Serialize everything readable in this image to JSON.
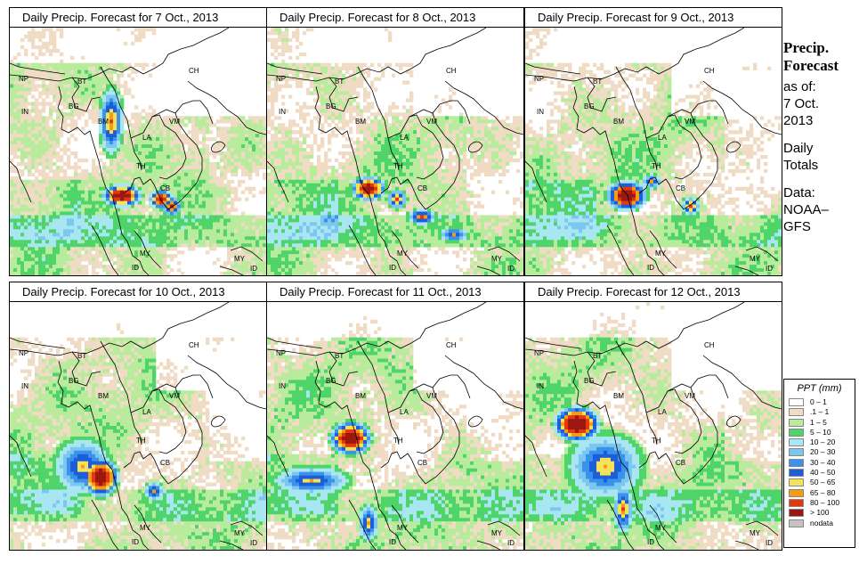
{
  "panels": [
    {
      "title": "Daily Precip. Forecast for  7 Oct., 2013",
      "variant": 0
    },
    {
      "title": "Daily Precip. Forecast for  8 Oct., 2013",
      "variant": 1
    },
    {
      "title": "Daily Precip. Forecast for  9 Oct., 2013",
      "variant": 2
    },
    {
      "title": "Daily Precip. Forecast for  10 Oct., 2013",
      "variant": 3
    },
    {
      "title": "Daily Precip. Forecast for  11 Oct., 2013",
      "variant": 4
    },
    {
      "title": "Daily Precip. Forecast for  12 Oct., 2013",
      "variant": 5
    }
  ],
  "map_labels": [
    "NP",
    "BT",
    "IN",
    "BG",
    "BM",
    "CH",
    "VM",
    "LA",
    "TH",
    "CB",
    "MY",
    "ID"
  ],
  "sidebar": {
    "heading1": "Precip.",
    "heading2": "Forecast",
    "asof": "as of:",
    "date1": "7 Oct.",
    "date2": "2013",
    "daily1": "Daily",
    "daily2": "Totals",
    "data1": "Data:",
    "data2": "NOAA–",
    "data3": "GFS"
  },
  "chart_data": {
    "type": "heatmap",
    "title": "Daily Precip. Forecast",
    "legend_title": "PPT (mm)",
    "legend": [
      {
        "label": "0 – 1",
        "color": "#ffffff"
      },
      {
        "label": ".1 – 1",
        "color": "#f0dcc4"
      },
      {
        "label": "1 – 5",
        "color": "#b8ec9c"
      },
      {
        "label": "5 – 10",
        "color": "#4fd46a"
      },
      {
        "label": "10 – 20",
        "color": "#a8e6f2"
      },
      {
        "label": "20 – 30",
        "color": "#7cc7f0"
      },
      {
        "label": "30 – 40",
        "color": "#3a92ea"
      },
      {
        "label": "40 – 50",
        "color": "#1c5ed8"
      },
      {
        "label": "50 – 65",
        "color": "#f6e25a"
      },
      {
        "label": "65 – 80",
        "color": "#f59b16"
      },
      {
        "label": "80 – 100",
        "color": "#e3380e"
      },
      {
        "label": "> 100",
        "color": "#9a1810"
      },
      {
        "label": "nodata",
        "color": "#c4c4c4"
      }
    ]
  }
}
